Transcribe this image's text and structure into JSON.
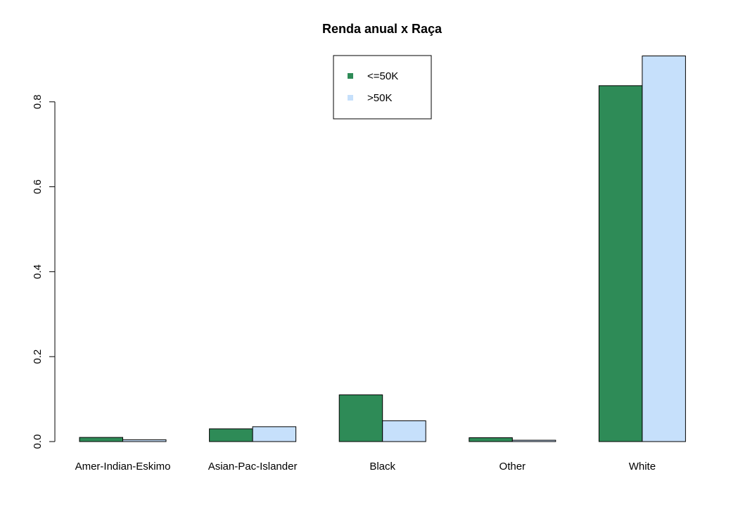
{
  "chart_data": {
    "type": "bar",
    "title": "Renda anual x Raça",
    "xlabel": "",
    "ylabel": "",
    "categories": [
      "Amer-Indian-Eskimo",
      "Asian-Pac-Islander",
      "Black",
      "Other",
      "White"
    ],
    "series": [
      {
        "name": "<=50K",
        "color": "#2e8b57",
        "values": [
          0.0098,
          0.03,
          0.11,
          0.0091,
          0.838
        ]
      },
      {
        "name": ">50K",
        "color": "#c6e0fb",
        "values": [
          0.0043,
          0.035,
          0.049,
          0.0032,
          0.908
        ]
      }
    ],
    "ylim": [
      0,
      0.9
    ],
    "yticks": [
      0.0,
      0.2,
      0.4,
      0.6,
      0.8
    ],
    "ytick_labels": [
      "0.0",
      "0.2",
      "0.4",
      "0.6",
      "0.8"
    ],
    "grid": false,
    "legend_position": "top-center"
  }
}
